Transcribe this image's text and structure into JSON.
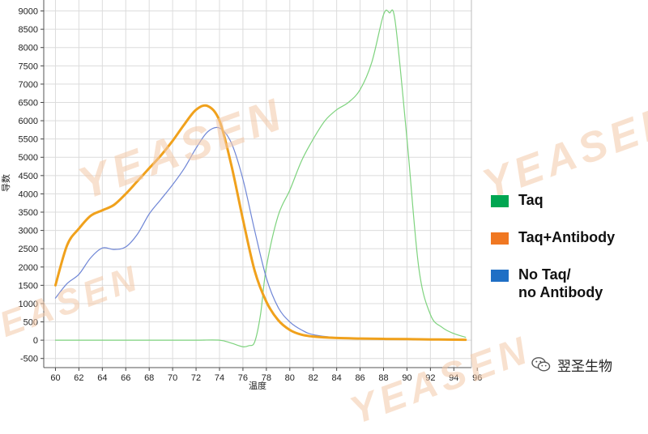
{
  "chart_data": {
    "type": "line",
    "xlabel": "温度",
    "ylabel": "导数",
    "xlim": [
      59,
      95.5
    ],
    "ylim": [
      -750,
      9300
    ],
    "x_ticks": [
      "60",
      "62",
      "64",
      "66",
      "68",
      "70",
      "72",
      "74",
      "76",
      "78",
      "80",
      "82",
      "84",
      "86",
      "88",
      "90",
      "92",
      "94",
      "96"
    ],
    "y_ticks": [
      "-500",
      "0",
      "500",
      "1000",
      "1500",
      "2000",
      "2500",
      "3000",
      "3500",
      "4000",
      "4500",
      "5000",
      "5500",
      "6000",
      "6500",
      "7000",
      "7500",
      "8000",
      "8500",
      "9000"
    ],
    "series": [
      {
        "name": "Taq",
        "color": "#7ED37E",
        "stroke_width": 1.2,
        "x": [
          60,
          62,
          64,
          66,
          68,
          70,
          72,
          74,
          75,
          76,
          76.5,
          77,
          77.5,
          78,
          79,
          80,
          81,
          82,
          83,
          84,
          85,
          86,
          87,
          88,
          88.5,
          89,
          90,
          91,
          92,
          93,
          94,
          95
        ],
        "y": [
          0,
          0,
          0,
          0,
          0,
          0,
          0,
          0,
          -80,
          -180,
          -150,
          -50,
          700,
          2000,
          3400,
          4100,
          4900,
          5500,
          6000,
          6300,
          6500,
          6850,
          7600,
          8900,
          8950,
          8700,
          5500,
          2000,
          700,
          350,
          180,
          80
        ]
      },
      {
        "name": "No Taq/ no Antibody",
        "color": "#6F86D6",
        "stroke_width": 1.2,
        "x": [
          60,
          61,
          62,
          63,
          64,
          65,
          66,
          67,
          68,
          69,
          70,
          71,
          72,
          73,
          74,
          75,
          76,
          77,
          78,
          79,
          80,
          81,
          82,
          84,
          86,
          88,
          90,
          92,
          94,
          95
        ],
        "y": [
          1150,
          1550,
          1800,
          2250,
          2520,
          2480,
          2550,
          2900,
          3450,
          3850,
          4250,
          4700,
          5250,
          5700,
          5800,
          5400,
          4400,
          3000,
          1700,
          900,
          500,
          280,
          150,
          70,
          40,
          30,
          25,
          20,
          15,
          10
        ]
      },
      {
        "name": "Taq+Antibody",
        "color": "#F0A11C",
        "stroke_width": 3,
        "x": [
          60,
          61,
          62,
          63,
          64,
          65,
          66,
          67,
          68,
          69,
          70,
          71,
          72,
          73,
          74,
          75,
          76,
          77,
          78,
          79,
          80,
          81,
          82,
          84,
          86,
          88,
          90,
          92,
          94,
          95
        ],
        "y": [
          1500,
          2600,
          3050,
          3400,
          3550,
          3700,
          4000,
          4350,
          4700,
          5050,
          5450,
          5900,
          6300,
          6400,
          6000,
          4800,
          3300,
          1900,
          1050,
          550,
          280,
          150,
          100,
          60,
          45,
          35,
          30,
          20,
          15,
          10
        ]
      }
    ],
    "legend": {
      "placement": "right",
      "items": [
        {
          "label": "Taq",
          "color": "#00A651"
        },
        {
          "label": "Taq+Antibody",
          "color": "#F07822"
        },
        {
          "label_lines": [
            "No Taq/",
            "no Antibody"
          ],
          "color": "#1F6FC5"
        }
      ]
    },
    "grid": true
  },
  "watermark": "YEASEN",
  "brand": {
    "text": "翌圣生物",
    "icon": "wechat-icon"
  }
}
